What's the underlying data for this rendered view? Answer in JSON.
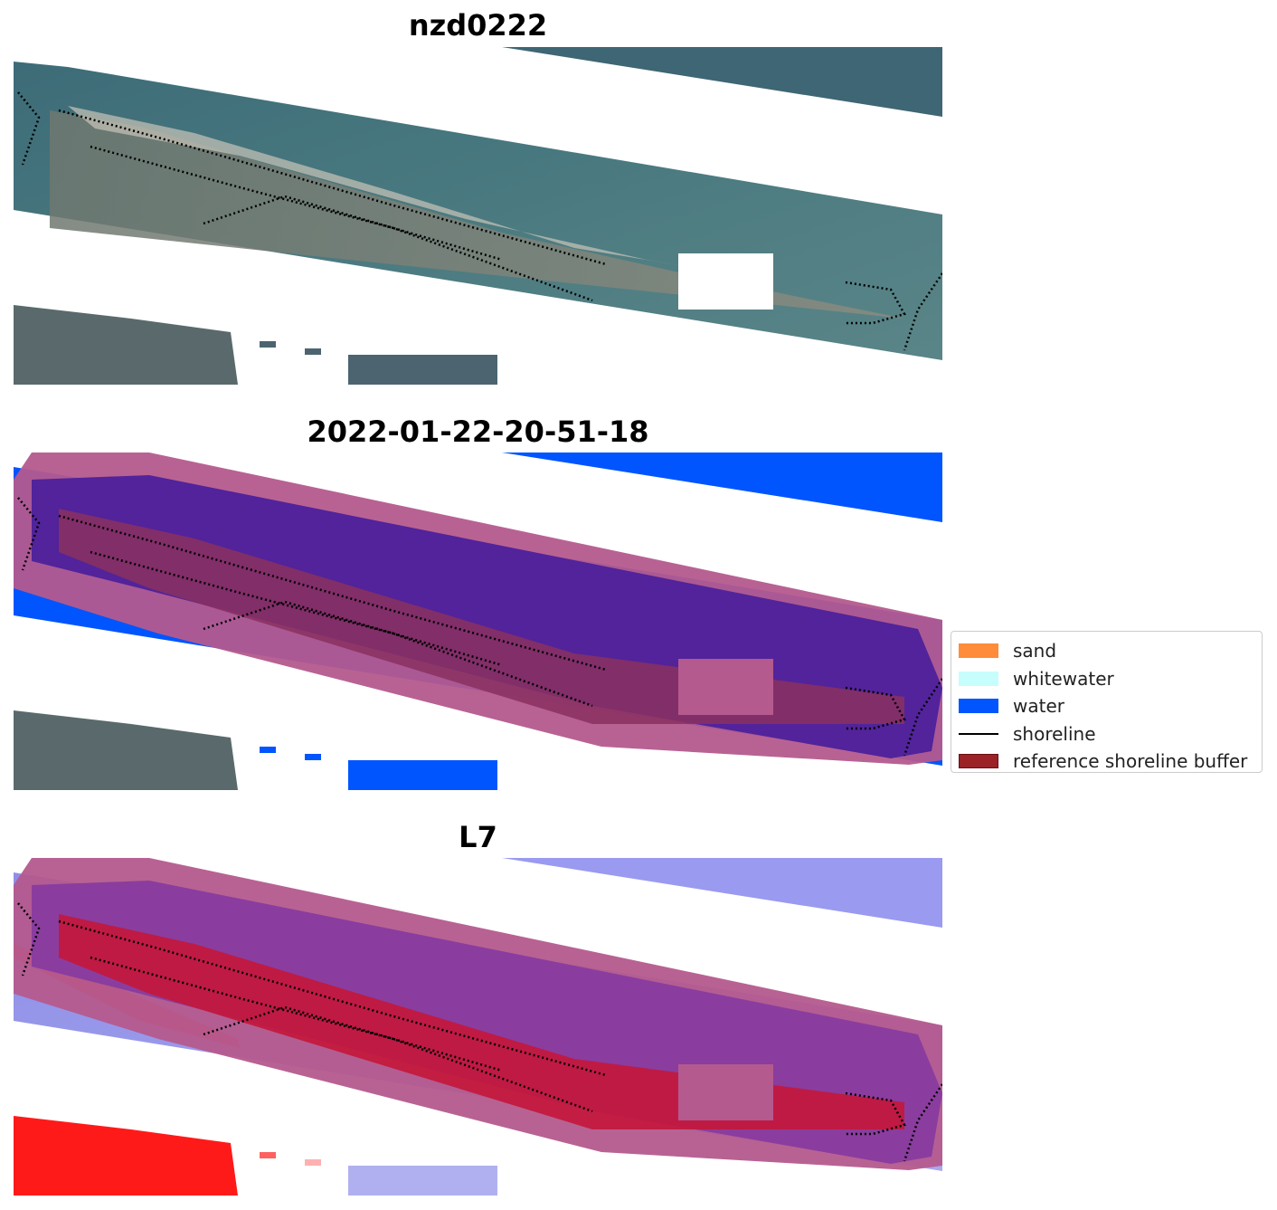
{
  "panels": [
    {
      "title": "nzd0222",
      "kind": "rgb"
    },
    {
      "title": "2022-01-22-20-51-18",
      "kind": "classified"
    },
    {
      "title": "L7",
      "kind": "index"
    }
  ],
  "legend": {
    "items": [
      {
        "label": "sand",
        "color": "#ff8c3a",
        "type": "patch"
      },
      {
        "label": "whitewater",
        "color": "#c8fdfd",
        "type": "patch"
      },
      {
        "label": "water",
        "color": "#0055ff",
        "type": "patch"
      },
      {
        "label": "shoreline",
        "color": "#000000",
        "type": "line"
      },
      {
        "label": "reference shoreline buffer",
        "color": "#9b2226",
        "type": "patch"
      }
    ]
  }
}
